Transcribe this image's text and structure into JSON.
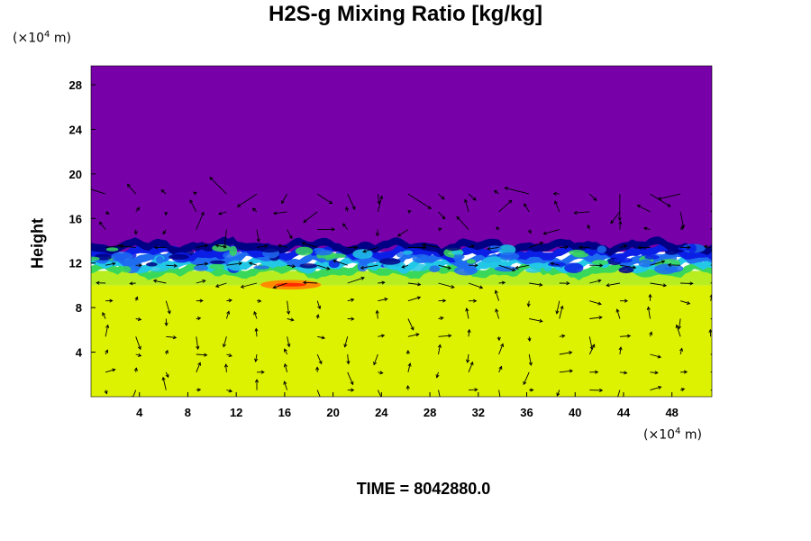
{
  "chart_data": {
    "type": "heatmap",
    "title": "H2S-g Mixing Ratio [kg/kg]",
    "ylabel": "Height",
    "xlabel": "",
    "x_unit_base": "(×10",
    "x_unit_exp": "4",
    "x_unit_tail": " m)",
    "y_unit_base": "(×10",
    "y_unit_exp": "4",
    "y_unit_tail": " m)",
    "xlim": [
      0,
      51.3
    ],
    "ylim": [
      0,
      29.7
    ],
    "x_ticks": [
      4,
      8,
      12,
      16,
      20,
      24,
      28,
      32,
      36,
      40,
      44,
      48
    ],
    "y_ticks": [
      4,
      8,
      12,
      16,
      20,
      24,
      28
    ],
    "bands": [
      {
        "name": "upper",
        "y_from": 13.0,
        "y_to": 29.7,
        "color": "#7700a8"
      },
      {
        "name": "lower",
        "y_from": 0,
        "y_to": 10.0,
        "color": "#ddf200"
      },
      {
        "name": "transition",
        "y_from": 10.0,
        "y_to": 11.3,
        "color": "#b8ee20"
      }
    ],
    "interface_layer": {
      "y_bottom": 11.0,
      "y_top": 13.7,
      "colors": [
        "#3ad85a",
        "#22c8e6",
        "#1e6cf0",
        "#0a1ee6",
        "#000084"
      ],
      "hotspot": {
        "x": [
          14,
          19
        ],
        "y": [
          9.7,
          10.4
        ],
        "colors": [
          "#ff8a00",
          "#ff2a00"
        ]
      }
    },
    "vector_field": {
      "x_spacing": 2.5,
      "y_spacing": 1.6,
      "y_max": 19.5,
      "color": "#000000"
    }
  },
  "time_label": "TIME = 8042880.0"
}
